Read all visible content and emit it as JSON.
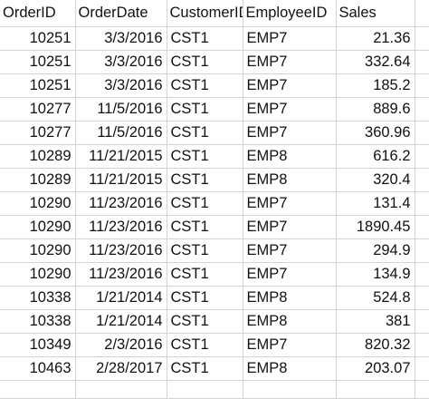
{
  "sheet": {
    "columns": [
      "OrderID",
      "OrderDate",
      "CustomerID",
      "EmployeeID",
      "Sales"
    ],
    "rows": [
      [
        "10251",
        "3/3/2016",
        "CST1",
        "EMP7",
        "21.36"
      ],
      [
        "10251",
        "3/3/2016",
        "CST1",
        "EMP7",
        "332.64"
      ],
      [
        "10251",
        "3/3/2016",
        "CST1",
        "EMP7",
        "185.2"
      ],
      [
        "10277",
        "11/5/2016",
        "CST1",
        "EMP7",
        "889.6"
      ],
      [
        "10277",
        "11/5/2016",
        "CST1",
        "EMP7",
        "360.96"
      ],
      [
        "10289",
        "11/21/2015",
        "CST1",
        "EMP8",
        "616.2"
      ],
      [
        "10289",
        "11/21/2015",
        "CST1",
        "EMP8",
        "320.4"
      ],
      [
        "10290",
        "11/23/2016",
        "CST1",
        "EMP7",
        "131.4"
      ],
      [
        "10290",
        "11/23/2016",
        "CST1",
        "EMP7",
        "1890.45"
      ],
      [
        "10290",
        "11/23/2016",
        "CST1",
        "EMP7",
        "294.9"
      ],
      [
        "10290",
        "11/23/2016",
        "CST1",
        "EMP7",
        "134.9"
      ],
      [
        "10338",
        "1/21/2014",
        "CST1",
        "EMP8",
        "524.8"
      ],
      [
        "10338",
        "1/21/2014",
        "CST1",
        "EMP8",
        "381"
      ],
      [
        "10349",
        "2/3/2016",
        "CST1",
        "EMP7",
        "820.32"
      ],
      [
        "10463",
        "2/28/2017",
        "CST1",
        "EMP8",
        "203.07"
      ]
    ]
  }
}
